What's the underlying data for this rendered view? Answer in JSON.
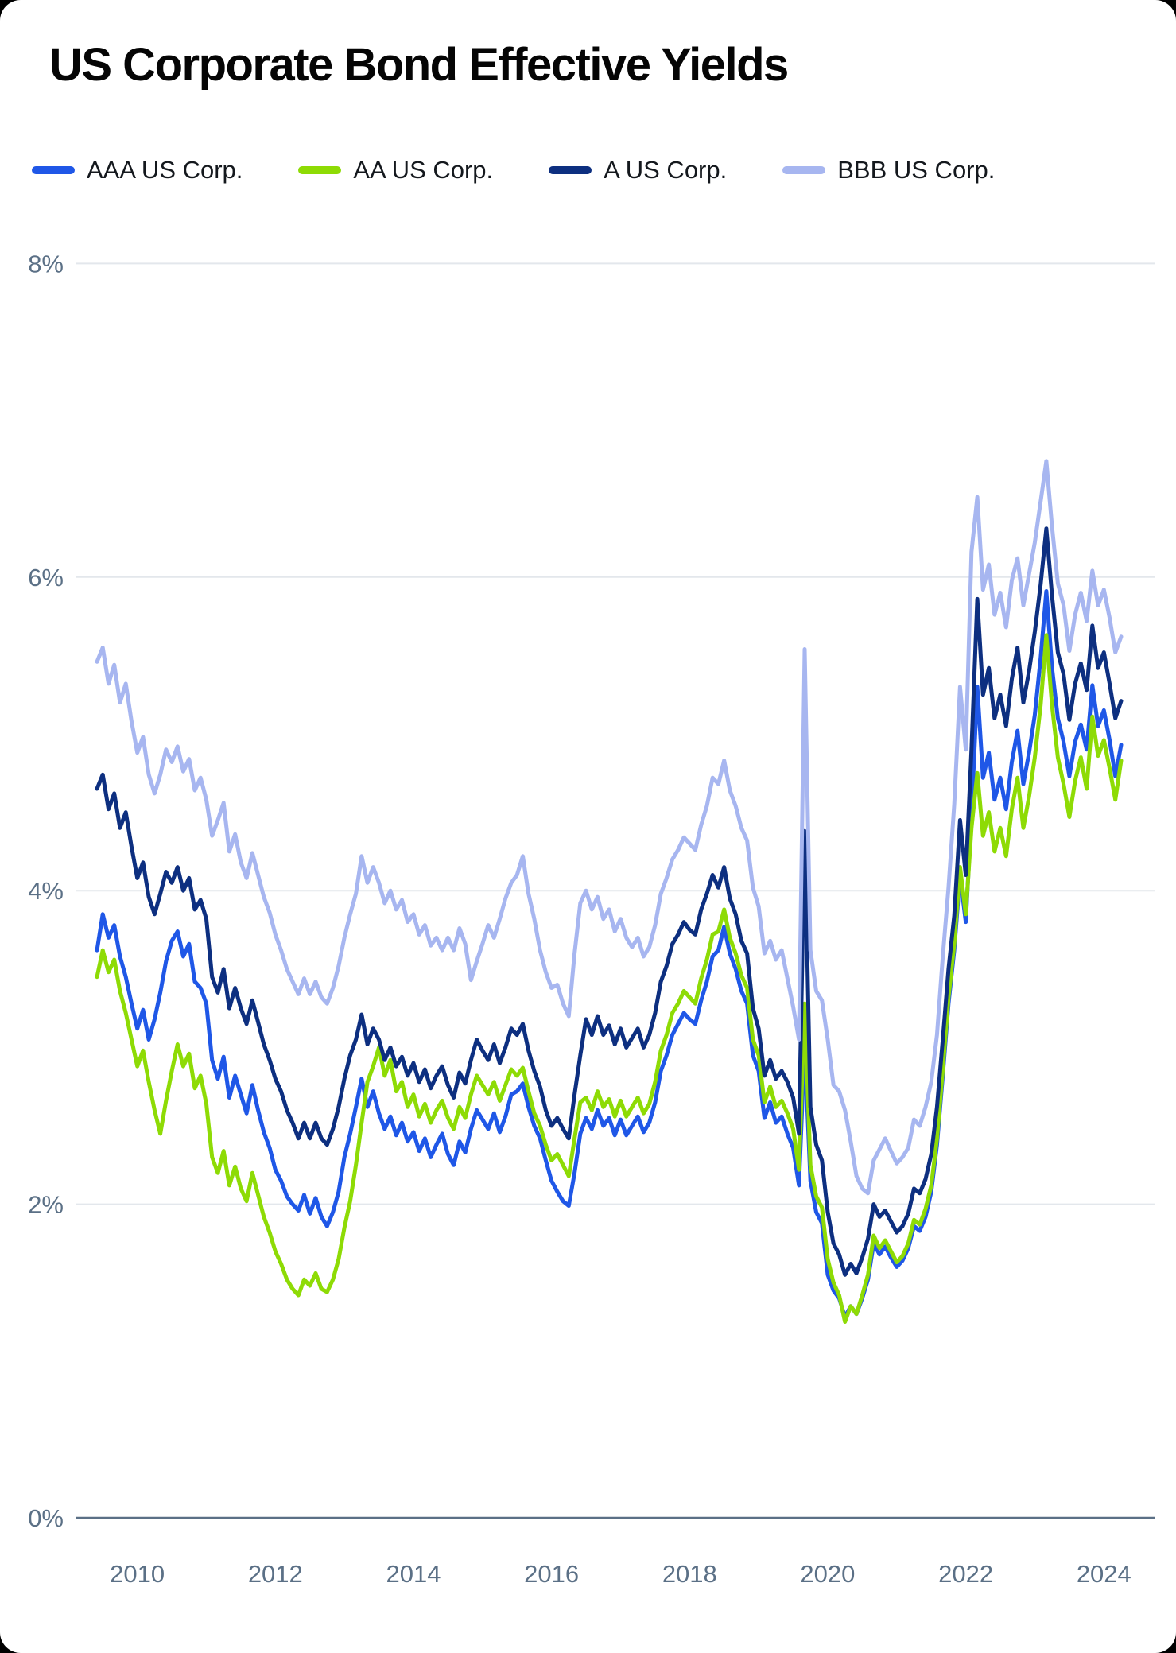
{
  "title": "US Corporate Bond Effective Yields",
  "legend": [
    {
      "label": "AAA US Corp."
    },
    {
      "label": "AA US Corp."
    },
    {
      "label": "A US Corp."
    },
    {
      "label": "BBB US Corp."
    }
  ],
  "axis": {
    "y_tick_labels": [
      "8%",
      "6%",
      "4%",
      "2%",
      "0%"
    ],
    "y_tick_values": [
      8,
      6,
      4,
      2,
      0
    ],
    "x_tick_labels": [
      "2010",
      "2012",
      "2014",
      "2016",
      "2018",
      "2020",
      "2022",
      "2024"
    ],
    "x_tick_values": [
      2010,
      2012,
      2014,
      2016,
      2018,
      2020,
      2022,
      2024
    ]
  },
  "colors": {
    "background": "#000000",
    "card": "#ffffff",
    "title_text": "#050505",
    "legend_text": "#14181d",
    "tick_text": "#5b7086",
    "grid_line": "#e3e7ec",
    "axis_line": "#5b7086"
  },
  "chart_data": {
    "type": "line",
    "title": "US Corporate Bond Effective Yields",
    "xlabel": "",
    "ylabel": "",
    "ylim": [
      0,
      8
    ],
    "x_start_year": 2009.9167,
    "x_step_months": 1,
    "x_end_year": 2024.75,
    "grid": true,
    "legend_position": "top",
    "series": [
      {
        "name": "AAA US Corp.",
        "color": "#1f57e7",
        "values": [
          3.62,
          3.85,
          3.7,
          3.78,
          3.58,
          3.45,
          3.28,
          3.12,
          3.24,
          3.05,
          3.18,
          3.35,
          3.55,
          3.68,
          3.74,
          3.58,
          3.66,
          3.42,
          3.38,
          3.28,
          2.92,
          2.8,
          2.94,
          2.68,
          2.82,
          2.7,
          2.58,
          2.76,
          2.6,
          2.46,
          2.36,
          2.22,
          2.15,
          2.05,
          2.0,
          1.96,
          2.06,
          1.94,
          2.04,
          1.92,
          1.86,
          1.95,
          2.08,
          2.3,
          2.45,
          2.62,
          2.8,
          2.62,
          2.72,
          2.58,
          2.48,
          2.56,
          2.44,
          2.52,
          2.4,
          2.46,
          2.34,
          2.42,
          2.3,
          2.38,
          2.45,
          2.32,
          2.25,
          2.4,
          2.33,
          2.48,
          2.6,
          2.54,
          2.48,
          2.58,
          2.46,
          2.56,
          2.7,
          2.72,
          2.77,
          2.62,
          2.5,
          2.42,
          2.28,
          2.15,
          2.08,
          2.02,
          1.99,
          2.2,
          2.45,
          2.55,
          2.48,
          2.6,
          2.5,
          2.55,
          2.44,
          2.54,
          2.44,
          2.5,
          2.56,
          2.46,
          2.52,
          2.65,
          2.85,
          2.95,
          3.08,
          3.15,
          3.22,
          3.18,
          3.15,
          3.3,
          3.42,
          3.58,
          3.62,
          3.77,
          3.6,
          3.5,
          3.36,
          3.28,
          2.95,
          2.85,
          2.55,
          2.65,
          2.52,
          2.56,
          2.45,
          2.36,
          2.12,
          3.02,
          2.15,
          1.95,
          1.88,
          1.55,
          1.45,
          1.4,
          1.28,
          1.35,
          1.3,
          1.4,
          1.52,
          1.75,
          1.68,
          1.73,
          1.66,
          1.6,
          1.64,
          1.72,
          1.86,
          1.83,
          1.92,
          2.08,
          2.38,
          2.82,
          3.28,
          3.62,
          4.1,
          3.8,
          4.48,
          5.3,
          4.72,
          4.88,
          4.58,
          4.72,
          4.52,
          4.82,
          5.02,
          4.68,
          4.88,
          5.12,
          5.48,
          5.91,
          5.42,
          5.1,
          4.95,
          4.73,
          4.95,
          5.06,
          4.9,
          5.31,
          5.05,
          5.15,
          4.96,
          4.73,
          4.93
        ]
      },
      {
        "name": "AA US Corp.",
        "color": "#8edb05",
        "values": [
          3.45,
          3.62,
          3.48,
          3.56,
          3.36,
          3.22,
          3.05,
          2.88,
          2.98,
          2.78,
          2.6,
          2.45,
          2.66,
          2.85,
          3.02,
          2.88,
          2.96,
          2.74,
          2.82,
          2.64,
          2.3,
          2.2,
          2.34,
          2.12,
          2.24,
          2.1,
          2.02,
          2.2,
          2.06,
          1.92,
          1.82,
          1.7,
          1.62,
          1.52,
          1.46,
          1.42,
          1.52,
          1.48,
          1.56,
          1.46,
          1.44,
          1.52,
          1.65,
          1.85,
          2.02,
          2.25,
          2.52,
          2.78,
          2.88,
          3.0,
          2.82,
          2.92,
          2.72,
          2.78,
          2.62,
          2.7,
          2.56,
          2.64,
          2.52,
          2.6,
          2.66,
          2.55,
          2.48,
          2.62,
          2.55,
          2.7,
          2.82,
          2.76,
          2.7,
          2.78,
          2.66,
          2.76,
          2.86,
          2.82,
          2.87,
          2.72,
          2.58,
          2.5,
          2.38,
          2.28,
          2.32,
          2.25,
          2.18,
          2.42,
          2.65,
          2.68,
          2.6,
          2.72,
          2.62,
          2.67,
          2.56,
          2.66,
          2.56,
          2.62,
          2.68,
          2.58,
          2.64,
          2.78,
          2.98,
          3.08,
          3.22,
          3.28,
          3.36,
          3.32,
          3.28,
          3.44,
          3.56,
          3.72,
          3.74,
          3.88,
          3.7,
          3.6,
          3.46,
          3.38,
          3.05,
          2.95,
          2.65,
          2.75,
          2.62,
          2.66,
          2.58,
          2.48,
          2.22,
          3.28,
          2.25,
          2.05,
          1.98,
          1.65,
          1.5,
          1.42,
          1.25,
          1.35,
          1.3,
          1.42,
          1.55,
          1.8,
          1.72,
          1.77,
          1.7,
          1.63,
          1.67,
          1.75,
          1.9,
          1.87,
          1.97,
          2.12,
          2.42,
          2.86,
          3.32,
          3.66,
          4.15,
          3.85,
          4.4,
          4.75,
          4.35,
          4.5,
          4.25,
          4.4,
          4.22,
          4.52,
          4.72,
          4.4,
          4.6,
          4.85,
          5.18,
          5.63,
          5.18,
          4.85,
          4.68,
          4.47,
          4.7,
          4.85,
          4.65,
          5.11,
          4.86,
          4.96,
          4.78,
          4.58,
          4.83
        ]
      },
      {
        "name": "A US Corp.",
        "color": "#0d2f80",
        "values": [
          4.65,
          4.74,
          4.52,
          4.62,
          4.4,
          4.5,
          4.28,
          4.08,
          4.18,
          3.96,
          3.85,
          3.98,
          4.12,
          4.05,
          4.15,
          4.0,
          4.08,
          3.88,
          3.94,
          3.82,
          3.45,
          3.35,
          3.5,
          3.25,
          3.38,
          3.25,
          3.15,
          3.3,
          3.16,
          3.02,
          2.92,
          2.8,
          2.72,
          2.6,
          2.52,
          2.42,
          2.52,
          2.42,
          2.52,
          2.42,
          2.38,
          2.48,
          2.62,
          2.8,
          2.95,
          3.05,
          3.21,
          3.02,
          3.12,
          3.05,
          2.92,
          3.0,
          2.88,
          2.94,
          2.82,
          2.9,
          2.78,
          2.86,
          2.74,
          2.82,
          2.88,
          2.76,
          2.68,
          2.84,
          2.77,
          2.92,
          3.05,
          2.98,
          2.92,
          3.02,
          2.9,
          3.0,
          3.12,
          3.08,
          3.15,
          2.98,
          2.85,
          2.75,
          2.6,
          2.5,
          2.55,
          2.48,
          2.42,
          2.7,
          2.95,
          3.18,
          3.08,
          3.2,
          3.08,
          3.14,
          3.02,
          3.12,
          3.0,
          3.06,
          3.12,
          3.0,
          3.08,
          3.22,
          3.42,
          3.52,
          3.66,
          3.72,
          3.8,
          3.75,
          3.72,
          3.88,
          3.98,
          4.1,
          4.02,
          4.15,
          3.95,
          3.85,
          3.68,
          3.6,
          3.25,
          3.12,
          2.82,
          2.92,
          2.8,
          2.85,
          2.78,
          2.68,
          2.45,
          4.38,
          2.62,
          2.38,
          2.28,
          1.95,
          1.75,
          1.68,
          1.55,
          1.62,
          1.56,
          1.66,
          1.78,
          2.0,
          1.92,
          1.96,
          1.89,
          1.82,
          1.86,
          1.94,
          2.1,
          2.07,
          2.16,
          2.32,
          2.62,
          3.05,
          3.5,
          3.84,
          4.45,
          4.1,
          4.9,
          5.86,
          5.25,
          5.42,
          5.1,
          5.25,
          5.05,
          5.35,
          5.55,
          5.2,
          5.4,
          5.65,
          5.95,
          6.31,
          5.88,
          5.52,
          5.38,
          5.09,
          5.32,
          5.45,
          5.28,
          5.69,
          5.42,
          5.52,
          5.32,
          5.1,
          5.21
        ]
      },
      {
        "name": "BBB US Corp.",
        "color": "#a7b6f0",
        "values": [
          5.46,
          5.55,
          5.32,
          5.44,
          5.2,
          5.32,
          5.08,
          4.88,
          4.98,
          4.74,
          4.62,
          4.74,
          4.9,
          4.82,
          4.92,
          4.76,
          4.84,
          4.64,
          4.72,
          4.58,
          4.35,
          4.45,
          4.56,
          4.25,
          4.36,
          4.18,
          4.08,
          4.24,
          4.1,
          3.96,
          3.86,
          3.72,
          3.62,
          3.5,
          3.42,
          3.34,
          3.44,
          3.34,
          3.42,
          3.32,
          3.28,
          3.38,
          3.52,
          3.7,
          3.85,
          3.98,
          4.22,
          4.05,
          4.15,
          4.05,
          3.92,
          4.0,
          3.88,
          3.94,
          3.8,
          3.85,
          3.72,
          3.78,
          3.65,
          3.7,
          3.62,
          3.7,
          3.62,
          3.76,
          3.66,
          3.43,
          3.55,
          3.66,
          3.78,
          3.7,
          3.82,
          3.95,
          4.05,
          4.1,
          4.22,
          3.98,
          3.82,
          3.62,
          3.48,
          3.38,
          3.4,
          3.28,
          3.2,
          3.6,
          3.92,
          4.0,
          3.88,
          3.96,
          3.82,
          3.88,
          3.74,
          3.82,
          3.7,
          3.64,
          3.7,
          3.58,
          3.64,
          3.78,
          3.98,
          4.08,
          4.2,
          4.26,
          4.34,
          4.3,
          4.26,
          4.42,
          4.54,
          4.72,
          4.68,
          4.83,
          4.64,
          4.54,
          4.4,
          4.32,
          4.02,
          3.9,
          3.6,
          3.68,
          3.56,
          3.62,
          3.44,
          3.26,
          3.05,
          5.54,
          3.62,
          3.36,
          3.3,
          3.05,
          2.76,
          2.72,
          2.6,
          2.4,
          2.18,
          2.1,
          2.07,
          2.28,
          2.35,
          2.42,
          2.34,
          2.26,
          2.3,
          2.36,
          2.54,
          2.5,
          2.62,
          2.78,
          3.08,
          3.58,
          4.02,
          4.55,
          5.3,
          4.9,
          6.16,
          6.51,
          5.92,
          6.08,
          5.76,
          5.9,
          5.68,
          5.98,
          6.12,
          5.82,
          6.02,
          6.22,
          6.48,
          6.74,
          6.32,
          5.96,
          5.82,
          5.53,
          5.76,
          5.9,
          5.72,
          6.04,
          5.82,
          5.92,
          5.74,
          5.52,
          5.62
        ]
      }
    ]
  }
}
